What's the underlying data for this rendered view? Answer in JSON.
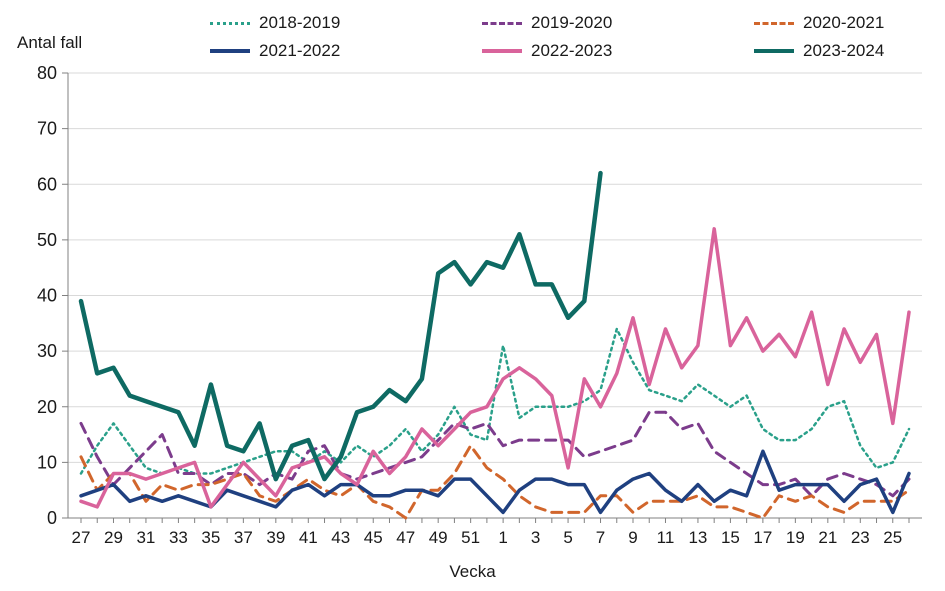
{
  "chart_data": {
    "type": "line",
    "title": "Antal fall",
    "xlabel": "Vecka",
    "ylabel": "Antal fall",
    "ylim": [
      0,
      80
    ],
    "ytick_step": 10,
    "grid": "horizontal",
    "legend_position": "top",
    "x_categories": [
      27,
      28,
      29,
      30,
      31,
      32,
      33,
      34,
      35,
      36,
      37,
      38,
      39,
      40,
      41,
      42,
      43,
      44,
      45,
      46,
      47,
      48,
      49,
      50,
      51,
      52,
      1,
      2,
      3,
      4,
      5,
      6,
      7,
      8,
      9,
      10,
      11,
      12,
      13,
      14,
      15,
      16,
      17,
      18,
      19,
      20,
      21,
      22,
      23,
      24,
      25,
      26
    ],
    "x_tick_labels": [
      "27",
      "29",
      "31",
      "33",
      "35",
      "37",
      "39",
      "41",
      "43",
      "45",
      "47",
      "49",
      "51",
      "1",
      "3",
      "5",
      "7",
      "9",
      "11",
      "13",
      "15",
      "17",
      "19",
      "21",
      "23",
      "25"
    ],
    "colors": {
      "grid": "#d9d9d9",
      "axis": "#808080",
      "text": "#1a1a1a"
    },
    "series": [
      {
        "name": "2018-2019",
        "color": "#2aa08a",
        "dash": "dotted",
        "width": 2.5,
        "values": [
          8,
          13,
          17,
          13,
          9,
          8,
          9,
          8,
          8,
          9,
          10,
          11,
          12,
          12,
          10,
          12,
          10,
          13,
          11,
          13,
          16,
          12,
          15,
          20,
          15,
          14,
          31,
          18,
          20,
          20,
          20,
          21,
          23,
          34,
          28,
          23,
          22,
          21,
          24,
          22,
          20,
          22,
          16,
          14,
          14,
          16,
          20,
          21,
          13,
          9,
          10,
          16
        ]
      },
      {
        "name": "2019-2020",
        "color": "#7c3c8c",
        "dash": "dashed",
        "width": 3,
        "values": [
          17,
          11,
          6,
          9,
          12,
          15,
          8,
          8,
          6,
          8,
          8,
          6,
          8,
          7,
          12,
          13,
          8,
          7,
          8,
          9,
          10,
          11,
          14,
          17,
          16,
          17,
          13,
          14,
          14,
          14,
          14,
          11,
          12,
          13,
          14,
          19,
          19,
          16,
          17,
          12,
          10,
          8,
          6,
          6,
          7,
          4,
          7,
          8,
          7,
          6,
          4,
          7
        ]
      },
      {
        "name": "2020-2021",
        "color": "#d1662c",
        "dash": "dashed",
        "width": 3,
        "values": [
          11,
          5,
          8,
          8,
          3,
          6,
          5,
          6,
          6,
          7,
          8,
          4,
          3,
          5,
          7,
          5,
          4,
          6,
          3,
          2,
          0,
          5,
          5,
          8,
          13,
          9,
          7,
          4,
          2,
          1,
          1,
          1,
          4,
          4,
          1,
          3,
          3,
          3,
          4,
          2,
          2,
          1,
          0,
          4,
          3,
          4,
          2,
          1,
          3,
          3,
          3,
          5
        ]
      },
      {
        "name": "2021-2022",
        "color": "#1f4080",
        "dash": "solid",
        "width": 3.5,
        "values": [
          4,
          5,
          6,
          3,
          4,
          3,
          4,
          3,
          2,
          5,
          4,
          3,
          2,
          5,
          6,
          4,
          6,
          6,
          4,
          4,
          5,
          5,
          4,
          7,
          7,
          4,
          1,
          5,
          7,
          7,
          6,
          6,
          1,
          5,
          7,
          8,
          5,
          3,
          6,
          3,
          5,
          4,
          12,
          5,
          6,
          6,
          6,
          3,
          6,
          7,
          1,
          8
        ]
      },
      {
        "name": "2022-2023",
        "color": "#d9639b",
        "dash": "solid",
        "width": 3.5,
        "values": [
          3,
          2,
          8,
          8,
          7,
          8,
          9,
          10,
          2,
          6,
          10,
          7,
          4,
          9,
          10,
          11,
          8,
          6,
          12,
          8,
          11,
          16,
          13,
          16,
          19,
          20,
          25,
          27,
          25,
          22,
          9,
          25,
          20,
          26,
          36,
          24,
          34,
          27,
          31,
          52,
          31,
          36,
          30,
          33,
          29,
          37,
          24,
          34,
          28,
          33,
          17,
          37
        ]
      },
      {
        "name": "2023-2024",
        "color": "#0e6a63",
        "dash": "solid",
        "width": 4.5,
        "values": [
          39,
          26,
          27,
          22,
          21,
          20,
          19,
          13,
          24,
          13,
          12,
          17,
          7,
          13,
          14,
          7,
          11,
          19,
          20,
          23,
          21,
          25,
          44,
          46,
          42,
          46,
          45,
          51,
          42,
          42,
          36,
          39,
          62,
          null,
          null,
          null,
          null,
          null,
          null,
          null,
          null,
          null,
          null,
          null,
          null,
          null,
          null,
          null,
          null,
          null,
          null,
          null
        ]
      }
    ]
  }
}
